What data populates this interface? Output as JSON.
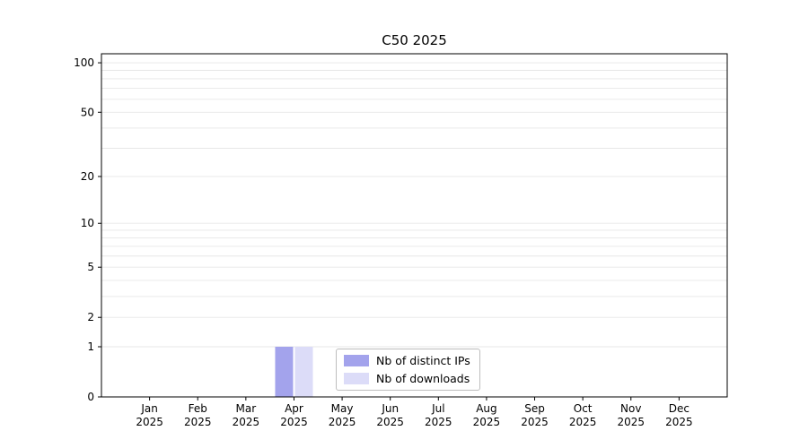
{
  "chart_data": {
    "type": "bar",
    "title": "C50 2025",
    "categories": [
      "Jan",
      "Feb",
      "Mar",
      "Apr",
      "May",
      "Jun",
      "Jul",
      "Aug",
      "Sep",
      "Oct",
      "Nov",
      "Dec"
    ],
    "category_year": "2025",
    "series": [
      {
        "name": "Nb of distinct IPs",
        "color": "#a3a3ec",
        "values": [
          0,
          0,
          0,
          1,
          0,
          0,
          0,
          0,
          0,
          0,
          0,
          0
        ]
      },
      {
        "name": "Nb of downloads",
        "color": "#dcdcf8",
        "values": [
          0,
          0,
          0,
          1,
          0,
          0,
          0,
          0,
          0,
          0,
          0,
          0
        ]
      }
    ],
    "yticks": [
      0,
      1,
      2,
      5,
      10,
      20,
      50,
      100
    ],
    "ylim": [
      0,
      100
    ],
    "yscale": "log1p",
    "grid_values": [
      1,
      2,
      3,
      4,
      5,
      6,
      7,
      8,
      9,
      10,
      20,
      30,
      40,
      50,
      60,
      70,
      80,
      90,
      100
    ],
    "grid": "horizontal",
    "legend_position": "lower-center-inside"
  }
}
